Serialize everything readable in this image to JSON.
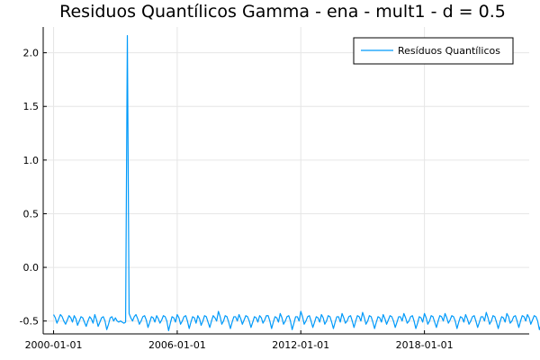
{
  "chart_data": {
    "type": "line",
    "title": "Residuos Quantílicos Gamma - ena - mult1 - d = 0.5",
    "xlabel": "",
    "ylabel": "",
    "x_range": [
      "1999-07-01",
      "2023-02-01"
    ],
    "ylim": [
      -0.62,
      2.24
    ],
    "grid": true,
    "legend_position": "top-right",
    "x_ticks": [
      "2000-01-01",
      "2006-01-01",
      "2012-01-01",
      "2018-01-01"
    ],
    "y_ticks": [
      -0.5,
      0.0,
      0.5,
      1.0,
      1.5,
      2.0
    ],
    "y_tick_labels": [
      "-0.5",
      "0.0",
      "0.5",
      "1.0",
      "1.5",
      "2.0"
    ],
    "colors": {
      "series": "#009AFA"
    },
    "series": [
      {
        "name": "Resíduos Quantílicos",
        "x_start": "2000-01-01",
        "x_step": "monthly",
        "values": [
          -0.44,
          -0.47,
          -0.52,
          -0.48,
          -0.44,
          -0.46,
          -0.5,
          -0.53,
          -0.49,
          -0.45,
          -0.47,
          -0.51,
          -0.45,
          -0.48,
          -0.54,
          -0.5,
          -0.46,
          -0.47,
          -0.51,
          -0.55,
          -0.5,
          -0.46,
          -0.48,
          -0.52,
          -0.44,
          -0.49,
          -0.55,
          -0.51,
          -0.47,
          -0.46,
          -0.5,
          -0.58,
          -0.53,
          -0.47,
          -0.46,
          -0.5,
          -0.47,
          -0.5,
          -0.51,
          -0.5,
          -0.51,
          -0.52,
          -0.51,
          2.16,
          -0.43,
          -0.47,
          -0.5,
          -0.46,
          -0.44,
          -0.48,
          -0.53,
          -0.5,
          -0.46,
          -0.45,
          -0.49,
          -0.56,
          -0.51,
          -0.46,
          -0.47,
          -0.51,
          -0.45,
          -0.48,
          -0.52,
          -0.49,
          -0.45,
          -0.46,
          -0.5,
          -0.59,
          -0.52,
          -0.46,
          -0.47,
          -0.51,
          -0.44,
          -0.47,
          -0.53,
          -0.5,
          -0.46,
          -0.45,
          -0.5,
          -0.57,
          -0.51,
          -0.46,
          -0.47,
          -0.52,
          -0.45,
          -0.48,
          -0.54,
          -0.5,
          -0.45,
          -0.46,
          -0.51,
          -0.56,
          -0.5,
          -0.45,
          -0.47,
          -0.5,
          -0.41,
          -0.46,
          -0.53,
          -0.5,
          -0.45,
          -0.46,
          -0.51,
          -0.57,
          -0.51,
          -0.46,
          -0.46,
          -0.5,
          -0.44,
          -0.48,
          -0.53,
          -0.49,
          -0.45,
          -0.46,
          -0.5,
          -0.56,
          -0.51,
          -0.46,
          -0.47,
          -0.51,
          -0.45,
          -0.47,
          -0.52,
          -0.49,
          -0.45,
          -0.45,
          -0.5,
          -0.57,
          -0.51,
          -0.46,
          -0.47,
          -0.51,
          -0.43,
          -0.47,
          -0.53,
          -0.5,
          -0.46,
          -0.45,
          -0.5,
          -0.58,
          -0.52,
          -0.46,
          -0.46,
          -0.5,
          -0.41,
          -0.46,
          -0.53,
          -0.5,
          -0.46,
          -0.45,
          -0.5,
          -0.56,
          -0.51,
          -0.46,
          -0.47,
          -0.51,
          -0.44,
          -0.47,
          -0.53,
          -0.5,
          -0.45,
          -0.46,
          -0.51,
          -0.57,
          -0.51,
          -0.46,
          -0.46,
          -0.51,
          -0.43,
          -0.47,
          -0.52,
          -0.5,
          -0.46,
          -0.45,
          -0.5,
          -0.56,
          -0.5,
          -0.45,
          -0.46,
          -0.5,
          -0.42,
          -0.47,
          -0.53,
          -0.5,
          -0.45,
          -0.46,
          -0.51,
          -0.57,
          -0.51,
          -0.46,
          -0.47,
          -0.51,
          -0.44,
          -0.48,
          -0.53,
          -0.49,
          -0.45,
          -0.46,
          -0.5,
          -0.56,
          -0.51,
          -0.46,
          -0.46,
          -0.5,
          -0.43,
          -0.47,
          -0.52,
          -0.5,
          -0.46,
          -0.45,
          -0.5,
          -0.57,
          -0.52,
          -0.46,
          -0.47,
          -0.51,
          -0.43,
          -0.47,
          -0.53,
          -0.5,
          -0.45,
          -0.46,
          -0.51,
          -0.56,
          -0.5,
          -0.45,
          -0.46,
          -0.5,
          -0.43,
          -0.47,
          -0.52,
          -0.49,
          -0.45,
          -0.46,
          -0.5,
          -0.57,
          -0.51,
          -0.46,
          -0.47,
          -0.51,
          -0.44,
          -0.48,
          -0.53,
          -0.5,
          -0.46,
          -0.45,
          -0.5,
          -0.56,
          -0.51,
          -0.46,
          -0.46,
          -0.5,
          -0.42,
          -0.47,
          -0.53,
          -0.5,
          -0.45,
          -0.46,
          -0.51,
          -0.57,
          -0.51,
          -0.46,
          -0.47,
          -0.51,
          -0.43,
          -0.46,
          -0.52,
          -0.5,
          -0.46,
          -0.45,
          -0.5,
          -0.56,
          -0.5,
          -0.45,
          -0.46,
          -0.5,
          -0.44,
          -0.47,
          -0.53,
          -0.49,
          -0.45,
          -0.46,
          -0.5,
          -0.58,
          -0.53,
          -0.47,
          -0.49,
          -0.52,
          -0.47,
          -0.5,
          -0.55,
          -0.6,
          -0.62
        ]
      }
    ]
  }
}
